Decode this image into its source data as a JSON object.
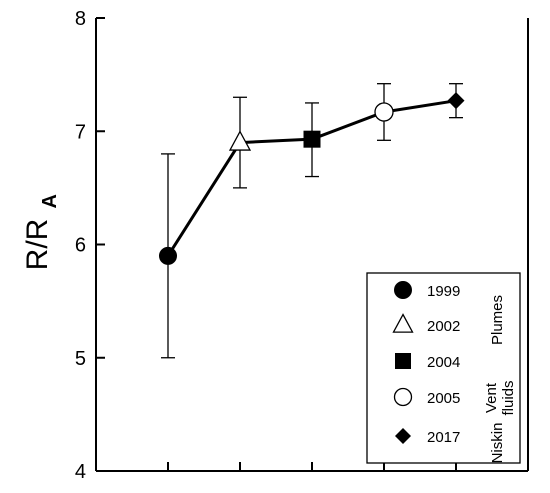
{
  "chart_data": {
    "type": "line",
    "ylabel": {
      "main": "R/R",
      "subscript": "A"
    },
    "xlabel": "",
    "ylim": [
      4,
      8
    ],
    "yticks": [
      "4",
      "5",
      "6",
      "7",
      "8"
    ],
    "x_tick_count": 6,
    "grid": false,
    "points": [
      {
        "name": "1999",
        "marker": "circle-filled",
        "x": 1,
        "y": 5.9,
        "err_low": 5.0,
        "err_high": 6.8
      },
      {
        "name": "2002",
        "marker": "triangle-open",
        "x": 2,
        "y": 6.9,
        "err_low": 6.5,
        "err_high": 7.3
      },
      {
        "name": "2004",
        "marker": "square-filled",
        "x": 3,
        "y": 6.93,
        "err_low": 6.6,
        "err_high": 7.25
      },
      {
        "name": "2005",
        "marker": "circle-open",
        "x": 4,
        "y": 7.17,
        "err_low": 6.92,
        "err_high": 7.42
      },
      {
        "name": "2017",
        "marker": "diamond-filled",
        "x": 5,
        "y": 7.27,
        "err_low": 7.12,
        "err_high": 7.42
      }
    ],
    "xlim": [
      0,
      6
    ],
    "legend": {
      "placement": "bottom-right",
      "entries": [
        "1999",
        "2002",
        "2004",
        "2005",
        "2017"
      ],
      "groups": [
        "Plumes",
        "Vent",
        "fluids",
        "Niskin"
      ]
    }
  }
}
